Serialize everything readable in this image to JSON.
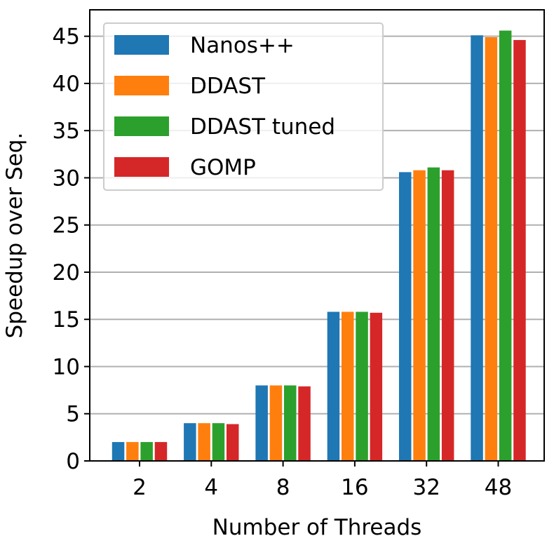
{
  "chart_data": {
    "type": "bar",
    "title": "",
    "xlabel": "Number of Threads",
    "ylabel": "Speedup over Seq.",
    "categories": [
      "2",
      "4",
      "8",
      "16",
      "32",
      "48"
    ],
    "ylim": [
      0,
      47.8
    ],
    "yticks": [
      0,
      5,
      10,
      15,
      20,
      25,
      30,
      35,
      40,
      45
    ],
    "grid": "horizontal",
    "legend_position": "top-left",
    "series": [
      {
        "name": "Nanos++",
        "color": "#1f77b4",
        "values": [
          2.0,
          4.0,
          8.0,
          15.8,
          30.6,
          45.1
        ]
      },
      {
        "name": "DDAST",
        "color": "#ff7f0e",
        "values": [
          2.0,
          4.0,
          8.0,
          15.8,
          30.8,
          44.9
        ]
      },
      {
        "name": "DDAST tuned",
        "color": "#2ca02c",
        "values": [
          2.0,
          4.0,
          8.0,
          15.8,
          31.1,
          45.6
        ]
      },
      {
        "name": "GOMP",
        "color": "#d62728",
        "values": [
          2.0,
          3.9,
          7.9,
          15.7,
          30.8,
          44.6
        ]
      }
    ]
  }
}
